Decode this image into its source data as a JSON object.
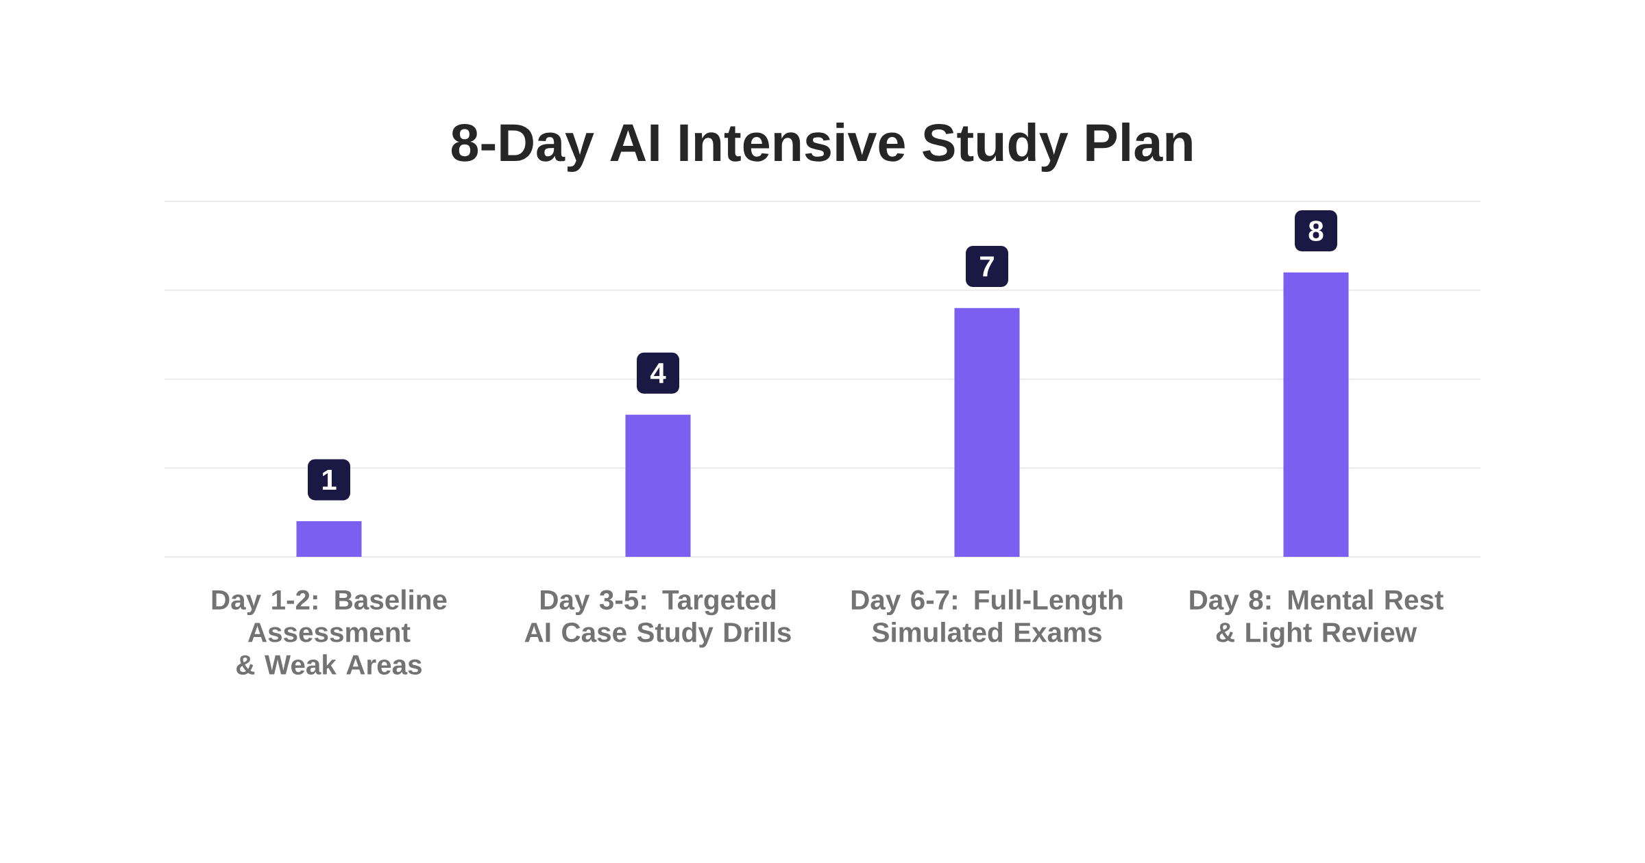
{
  "chart_data": {
    "type": "bar",
    "title": "8-Day AI Intensive Study Plan",
    "categories": [
      "Day 1-2: Baseline Assessment & Weak Areas",
      "Day 3-5: Targeted AI Case Study Drills",
      "Day 6-7: Full-Length Simulated Exams",
      "Day 8: Mental Rest & Light Review"
    ],
    "values": [
      1,
      4,
      7,
      8
    ],
    "color": "#7a5ff0",
    "ylim": [
      0,
      10
    ],
    "yticks": [
      {
        "value": 0,
        "label": null
      },
      {
        "value": 2.5,
        "label": null
      },
      {
        "value": 5,
        "label": null
      },
      {
        "value": 7.5,
        "label": null
      },
      {
        "value": 10,
        "label": null
      }
    ],
    "grid": "y",
    "tick_labels": "x",
    "data_labels": true
  }
}
